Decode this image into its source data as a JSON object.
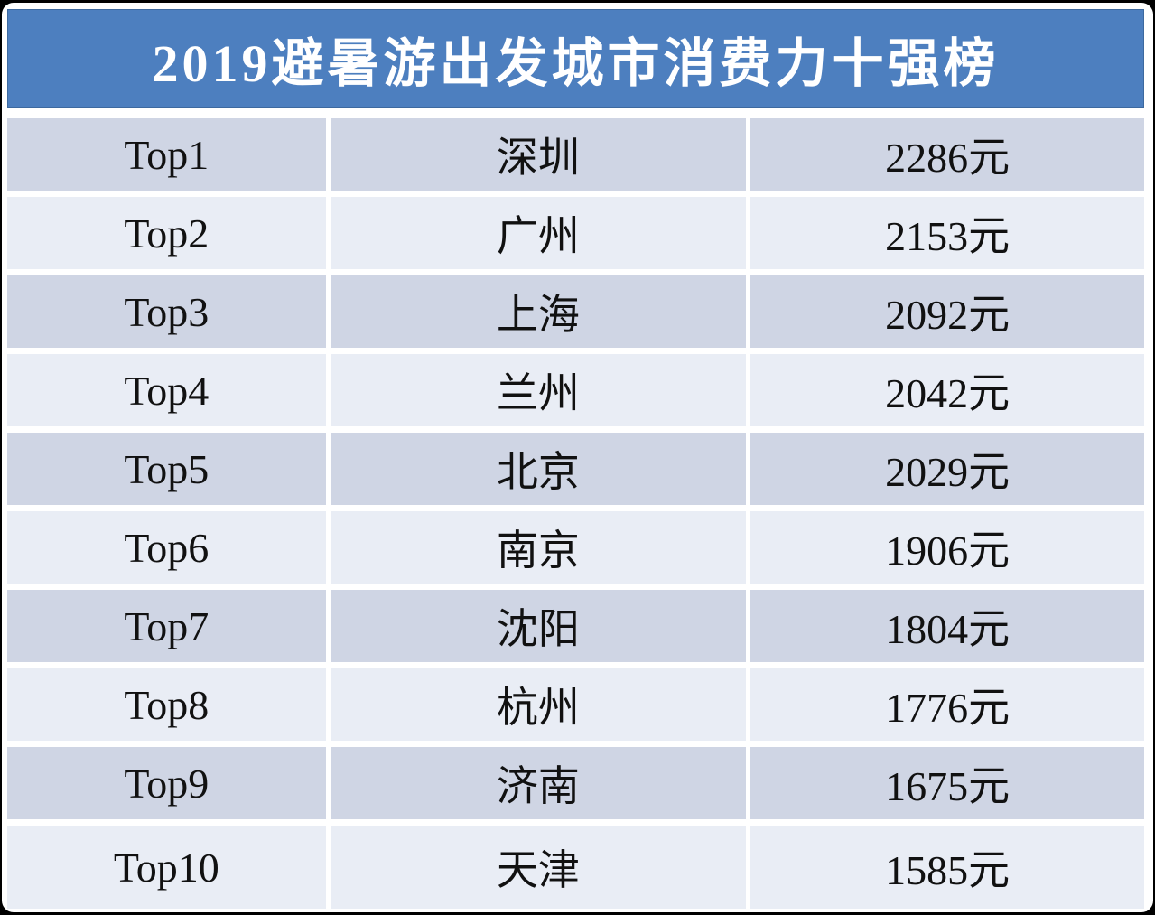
{
  "header": {
    "title": "2019避暑游出发城市消费力十强榜"
  },
  "colors": {
    "header_bg": "#4d7fbf",
    "row_dark": "#cfd5e4",
    "row_light": "#e9edf5",
    "title_text": "#ffffff",
    "cell_text": "#111111",
    "outer_border": "#000000"
  },
  "rows": [
    {
      "rank": "Top1",
      "city": "深圳",
      "price": "2286元"
    },
    {
      "rank": "Top2",
      "city": "广州",
      "price": "2153元"
    },
    {
      "rank": "Top3",
      "city": "上海",
      "price": "2092元"
    },
    {
      "rank": "Top4",
      "city": "兰州",
      "price": "2042元"
    },
    {
      "rank": "Top5",
      "city": "北京",
      "price": "2029元"
    },
    {
      "rank": "Top6",
      "city": "南京",
      "price": "1906元"
    },
    {
      "rank": "Top7",
      "city": "沈阳",
      "price": "1804元"
    },
    {
      "rank": "Top8",
      "city": "杭州",
      "price": "1776元"
    },
    {
      "rank": "Top9",
      "city": "济南",
      "price": "1675元"
    },
    {
      "rank": "Top10",
      "city": "天津",
      "price": "1585元"
    }
  ],
  "chart_data": {
    "type": "table",
    "title": "2019避暑游出发城市消费力十强榜",
    "categories": [
      "Top1",
      "Top2",
      "Top3",
      "Top4",
      "Top5",
      "Top6",
      "Top7",
      "Top8",
      "Top9",
      "Top10"
    ],
    "cities": [
      "深圳",
      "广州",
      "上海",
      "兰州",
      "北京",
      "南京",
      "沈阳",
      "杭州",
      "济南",
      "天津"
    ],
    "values_yuan": [
      2286,
      2153,
      2092,
      2042,
      2029,
      1906,
      1804,
      1776,
      1675,
      1585
    ],
    "unit": "元",
    "layout": "3-column ranked table, alternating row shading, blue title band"
  }
}
